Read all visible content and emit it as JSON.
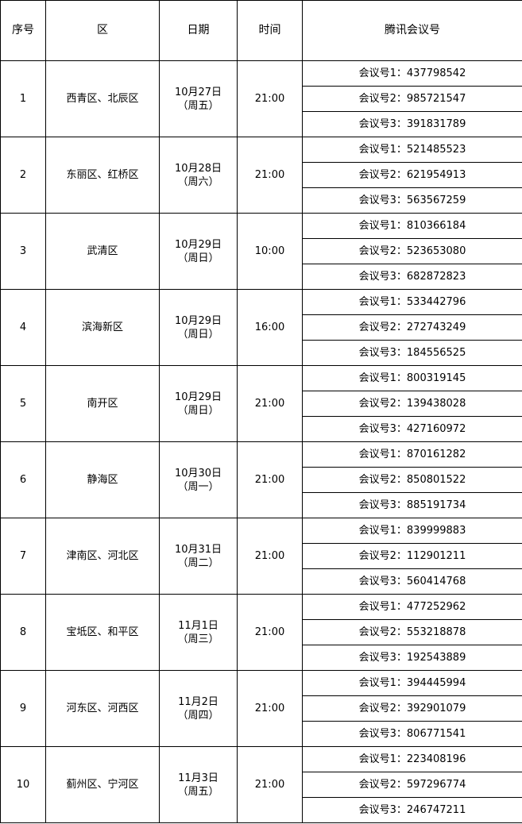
{
  "headers": [
    "序号",
    "区",
    "日期",
    "时间",
    "腾讯会议号"
  ],
  "rows": [
    {
      "no": "1",
      "district": "西青区、北辰区",
      "date": "10月27日",
      "weekday": "（周五）",
      "time": "21:00",
      "meetings": [
        "会议号1：437798542",
        "会议号2：985721547",
        "会议号3：391831789"
      ]
    },
    {
      "no": "2",
      "district": "东丽区、红桥区",
      "date": "10月28日",
      "weekday": "（周六）",
      "time": "21:00",
      "meetings": [
        "会议号1：521485523",
        "会议号2：621954913",
        "会议号3：563567259"
      ]
    },
    {
      "no": "3",
      "district": "武清区",
      "date": "10月29日",
      "weekday": "（周日）",
      "time": "10:00",
      "meetings": [
        "会议号1：810366184",
        "会议号2：523653080",
        "会议号3：682872823"
      ]
    },
    {
      "no": "4",
      "district": "滨海新区",
      "date": "10月29日",
      "weekday": "（周日）",
      "time": "16:00",
      "meetings": [
        "会议号1：533442796",
        "会议号2：272743249",
        "会议号3：184556525"
      ]
    },
    {
      "no": "5",
      "district": "南开区",
      "date": "10月29日",
      "weekday": "（周日）",
      "time": "21:00",
      "meetings": [
        "会议号1：800319145",
        "会议号2：139438028",
        "会议号3：427160972"
      ]
    },
    {
      "no": "6",
      "district": "静海区",
      "date": "10月30日",
      "weekday": "（周一）",
      "time": "21:00",
      "meetings": [
        "会议号1：870161282",
        "会议号2：850801522",
        "会议号3：885191734"
      ]
    },
    {
      "no": "7",
      "district": "津南区、河北区",
      "date": "10月31日",
      "weekday": "（周二）",
      "time": "21:00",
      "meetings": [
        "会议号1：839999883",
        "会议号2：112901211",
        "会议号3：560414768"
      ]
    },
    {
      "no": "8",
      "district": "宝坻区、和平区",
      "date": "11月1日",
      "weekday": "（周三）",
      "time": "21:00",
      "meetings": [
        "会议号1：477252962",
        "会议号2：553218878",
        "会议号3：192543889"
      ]
    },
    {
      "no": "9",
      "district": "河东区、河西区",
      "date": "11月2日",
      "weekday": "（周四）",
      "time": "21:00",
      "meetings": [
        "会议号1：394445994",
        "会议号2：392901079",
        "会议号3：806771541"
      ]
    },
    {
      "no": "10",
      "district": "蓟州区、宁河区",
      "date": "11月3日",
      "weekday": "（周五）",
      "time": "21:00",
      "meetings": [
        "会议号1：223408196",
        "会议号2：597296774",
        "会议号3：246747211"
      ]
    }
  ]
}
